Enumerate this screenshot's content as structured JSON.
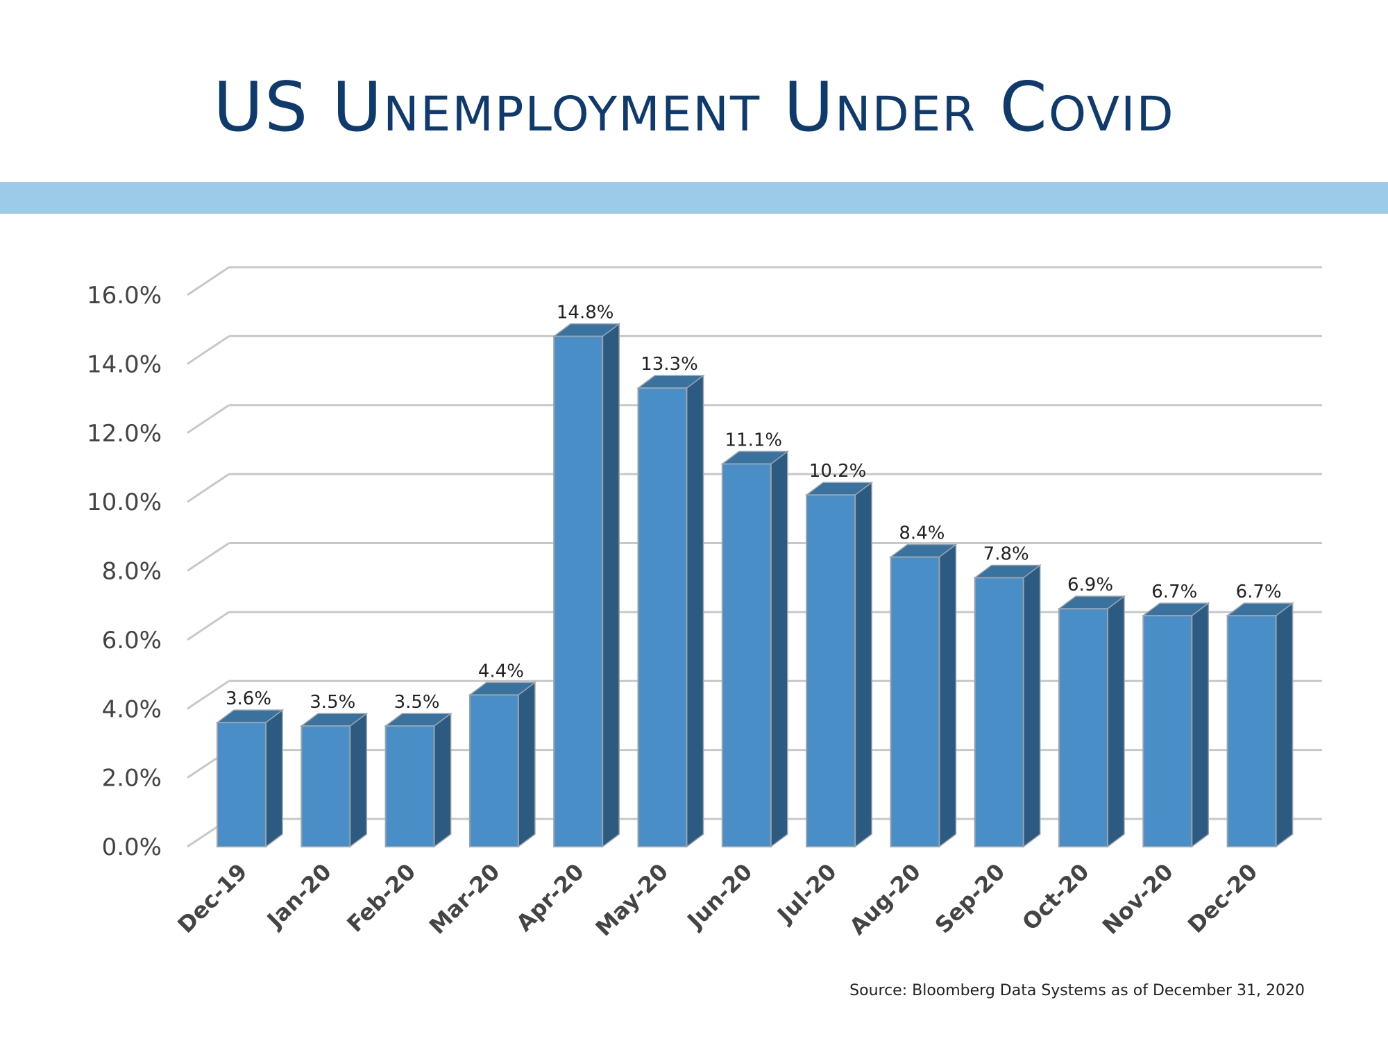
{
  "slide": {
    "title": "US Unemployment Under Covid",
    "source": "Source:  Bloomberg Data Systems as of December 31, 2020"
  },
  "colors": {
    "title": "#0f3a6e",
    "band": "#9ccbea",
    "bar_front": "#4a8ec8",
    "bar_side": "#2d5a80",
    "bar_top": "#39719f",
    "grid": "#c8c8c8",
    "axis_text": "#444444"
  },
  "chart_data": {
    "type": "bar",
    "style": "3d-column",
    "title": "",
    "xlabel": "",
    "ylabel": "",
    "ylim": [
      0,
      16
    ],
    "y_ticks": [
      "0.0%",
      "2.0%",
      "4.0%",
      "6.0%",
      "8.0%",
      "10.0%",
      "12.0%",
      "14.0%",
      "16.0%"
    ],
    "grid": true,
    "categories": [
      "Dec-19",
      "Jan-20",
      "Feb-20",
      "Mar-20",
      "Apr-20",
      "May-20",
      "Jun-20",
      "Jul-20",
      "Aug-20",
      "Sep-20",
      "Oct-20",
      "Nov-20",
      "Dec-20"
    ],
    "values": [
      3.6,
      3.5,
      3.5,
      4.4,
      14.8,
      13.3,
      11.1,
      10.2,
      8.4,
      7.8,
      6.9,
      6.7,
      6.7
    ],
    "data_labels": [
      "3.6%",
      "3.5%",
      "3.5%",
      "4.4%",
      "14.8%",
      "13.3%",
      "11.1%",
      "10.2%",
      "8.4%",
      "7.8%",
      "6.9%",
      "6.7%",
      "6.7%"
    ]
  }
}
